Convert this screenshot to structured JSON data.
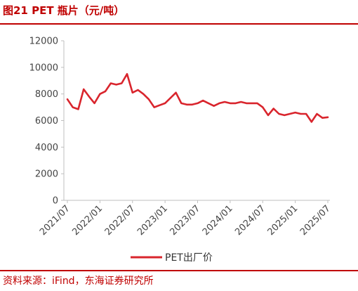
{
  "figure": {
    "title": "图21  PET 瓶片（元/吨）",
    "source": "资料来源：iFind，东海证券研究所"
  },
  "colors": {
    "accent": "#c00000",
    "series": "#d9252d",
    "axis": "#bfbfbf"
  },
  "chart_data": {
    "type": "line",
    "title": "",
    "xlabel": "",
    "ylabel": "",
    "ylim": [
      0,
      12000
    ],
    "yticks": [
      "0",
      "2000",
      "4000",
      "6000",
      "8000",
      "10000",
      "12000"
    ],
    "xticks": [
      "2021/07",
      "2022/01",
      "2022/07",
      "2023/01",
      "2023/07",
      "2024/01",
      "2024/07",
      "2025/01",
      "2025/07"
    ],
    "grid": false,
    "legend": "bottom",
    "series": [
      {
        "name": "PET出厂价",
        "color": "#d9252d",
        "x": [
          "2021/07",
          "2021/08",
          "2021/09",
          "2021/10",
          "2021/11",
          "2021/12",
          "2022/01",
          "2022/02",
          "2022/03",
          "2022/04",
          "2022/05",
          "2022/06",
          "2022/07",
          "2022/08",
          "2022/09",
          "2022/10",
          "2022/11",
          "2022/12",
          "2023/01",
          "2023/02",
          "2023/03",
          "2023/04",
          "2023/05",
          "2023/06",
          "2023/07",
          "2023/08",
          "2023/09",
          "2023/10",
          "2023/11",
          "2023/12",
          "2024/01",
          "2024/02",
          "2024/03",
          "2024/04",
          "2024/05",
          "2024/06",
          "2024/07",
          "2024/08",
          "2024/09",
          "2024/10",
          "2024/11",
          "2024/12",
          "2025/01",
          "2025/02",
          "2025/03",
          "2025/04",
          "2025/05",
          "2025/06",
          "2025/07"
        ],
        "values": [
          7600,
          7000,
          6850,
          8350,
          7800,
          7300,
          8000,
          8200,
          8800,
          8700,
          8800,
          9500,
          8100,
          8300,
          8000,
          7600,
          7000,
          7150,
          7300,
          7700,
          8100,
          7300,
          7200,
          7200,
          7300,
          7500,
          7300,
          7100,
          7300,
          7400,
          7300,
          7300,
          7400,
          7300,
          7300,
          7300,
          7000,
          6400,
          6900,
          6500,
          6400,
          6500,
          6600,
          6500,
          6500,
          5900,
          6500,
          6200,
          6250
        ]
      }
    ]
  }
}
